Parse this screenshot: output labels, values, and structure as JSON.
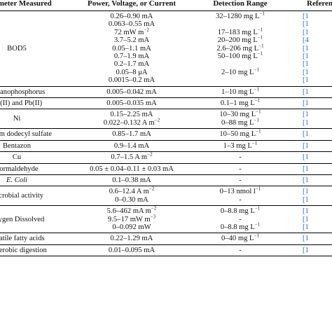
{
  "headers": {
    "parameter": "Parameter Measured",
    "power": "Power, Voltage, or Current",
    "range": "Detection Range",
    "ref": "Reference"
  },
  "rows": [
    {
      "param": "BOD5",
      "power": [
        "0.26–0.90 mA",
        "0.063–0.55 mA",
        "72 mW m−2",
        "3.7–5.2 mA",
        "0.05–1.1 mA",
        "0.7–1.9 mA",
        "0.2–1.7 mA",
        "0.05–8 μA",
        "0.0015–0.2 mA"
      ],
      "range": [
        "32–1280 mg L−1",
        "",
        "17–183 mg L−1",
        "20–200 mg L−1",
        "2.6–206 mg L−1",
        "50–100 mg L−1",
        "",
        "2–10 mg L−1",
        ""
      ],
      "ref": [
        "[1",
        "[1",
        "[1",
        "[4",
        "[1",
        "[1",
        "[1",
        "[1",
        "[1"
      ]
    },
    {
      "param": "Organophosphorus",
      "power": [
        "0.005–0.042 mA"
      ],
      "range": [
        "1–10 mg L−1"
      ],
      "ref": [
        "[1"
      ]
    },
    {
      "param": "Cd(II) and Pb(II)",
      "power": [
        "0.005–0.035 mA"
      ],
      "range": [
        "0.1–1 mg L−1"
      ],
      "ref": [
        "[1"
      ]
    },
    {
      "param": "Ni",
      "power": [
        "0.15–2.25 mA",
        "0.022–0.132 A m−2"
      ],
      "range": [
        "10–30 mg L−1",
        "0–88 mg L−1"
      ],
      "ref": [
        "[1",
        "[1"
      ]
    },
    {
      "param": "Sodium dodecyl sulfate",
      "power": [
        "0.85–1.7 mA"
      ],
      "range": [
        "10–50 mg L−1"
      ],
      "ref": [
        "[1"
      ]
    },
    {
      "param": "Bentazon",
      "power": [
        "0.9–1.4 mA"
      ],
      "range": [
        "1–3 mg L−1"
      ],
      "ref": [
        "[1"
      ]
    },
    {
      "param": "Cu",
      "power": [
        "0.7–1.5 A m−2"
      ],
      "range": [
        "-"
      ],
      "ref": [
        "[1"
      ]
    },
    {
      "param": "Formaldehyde",
      "power": [
        "0.05 ± 0.04–0.11 ± 0.03 mA"
      ],
      "range": [
        "-"
      ],
      "ref": [
        "[1"
      ]
    },
    {
      "param": "E. Coli",
      "power": [
        "0.1–0.38 mA"
      ],
      "range": [
        "-"
      ],
      "ref": [
        "[1"
      ]
    },
    {
      "param": "Microbial activity",
      "power": [
        "0.6–12.4 A m−2",
        "0–0.30 mA"
      ],
      "range": [
        "0–13 nmol l−1",
        "-"
      ],
      "ref": [
        "[1",
        "[1"
      ]
    },
    {
      "param": "Oxygen Dissolved",
      "power": [
        "5.6–462 mA m−2",
        "9.5–17 mW m−3",
        "0–0.092 mW"
      ],
      "range": [
        "0–8.8 mg L−1",
        "-",
        "0–8.8 mg L−1"
      ],
      "ref": [
        "[1",
        "[1",
        "[1"
      ]
    },
    {
      "param": "Volatile fatty acids",
      "power": [
        "0.22–1.29 mA"
      ],
      "range": [
        "0–40 mg L−1"
      ],
      "ref": [
        "[1"
      ]
    },
    {
      "param": "Anaerobic digestion",
      "power": [
        "0.01–0.095 mA"
      ],
      "range": [
        "-"
      ],
      "ref": [
        "[1"
      ]
    }
  ]
}
